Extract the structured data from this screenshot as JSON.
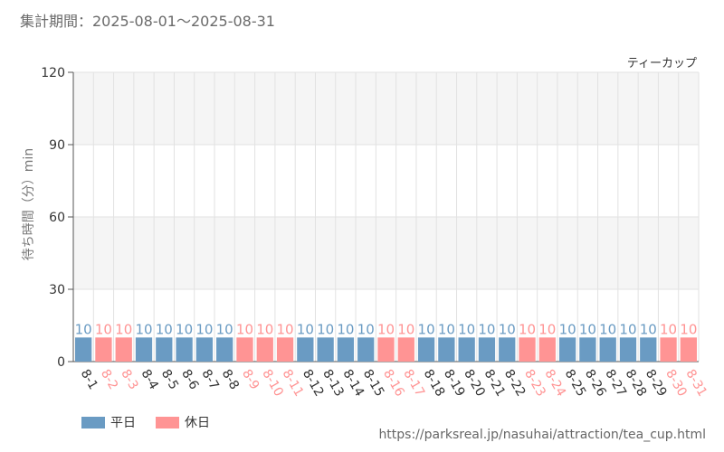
{
  "header": {
    "period": "集計期間：2025-08-01～2025-08-31"
  },
  "colors": {
    "weekday": "#6a9bc3",
    "holiday": "#ff9494",
    "grid": "#e2e2e2",
    "band": "#f5f5f5",
    "axis": "#555555"
  },
  "legend": {
    "weekday": "平日",
    "holiday": "休日"
  },
  "source_url": "https://parksreal.jp/nasuhai/attraction/tea_cup.html",
  "chart_data": {
    "type": "bar",
    "title": "ティーカップ",
    "ylabel": "待ち時間（分）min",
    "xlabel": "",
    "ylim": [
      0,
      120
    ],
    "yticks": [
      0,
      30,
      60,
      90,
      120
    ],
    "categories": [
      "8-1",
      "8-2",
      "8-3",
      "8-4",
      "8-5",
      "8-6",
      "8-7",
      "8-8",
      "8-9",
      "8-10",
      "8-11",
      "8-12",
      "8-13",
      "8-14",
      "8-15",
      "8-16",
      "8-17",
      "8-18",
      "8-19",
      "8-20",
      "8-21",
      "8-22",
      "8-23",
      "8-24",
      "8-25",
      "8-26",
      "8-27",
      "8-28",
      "8-29",
      "8-30",
      "8-31"
    ],
    "values": [
      10,
      10,
      10,
      10,
      10,
      10,
      10,
      10,
      10,
      10,
      10,
      10,
      10,
      10,
      10,
      10,
      10,
      10,
      10,
      10,
      10,
      10,
      10,
      10,
      10,
      10,
      10,
      10,
      10,
      10,
      10
    ],
    "day_type": [
      "weekday",
      "holiday",
      "holiday",
      "weekday",
      "weekday",
      "weekday",
      "weekday",
      "weekday",
      "holiday",
      "holiday",
      "holiday",
      "weekday",
      "weekday",
      "weekday",
      "weekday",
      "holiday",
      "holiday",
      "weekday",
      "weekday",
      "weekday",
      "weekday",
      "weekday",
      "holiday",
      "holiday",
      "weekday",
      "weekday",
      "weekday",
      "weekday",
      "weekday",
      "holiday",
      "holiday"
    ],
    "grid": true,
    "legend_position": "bottom-left"
  }
}
